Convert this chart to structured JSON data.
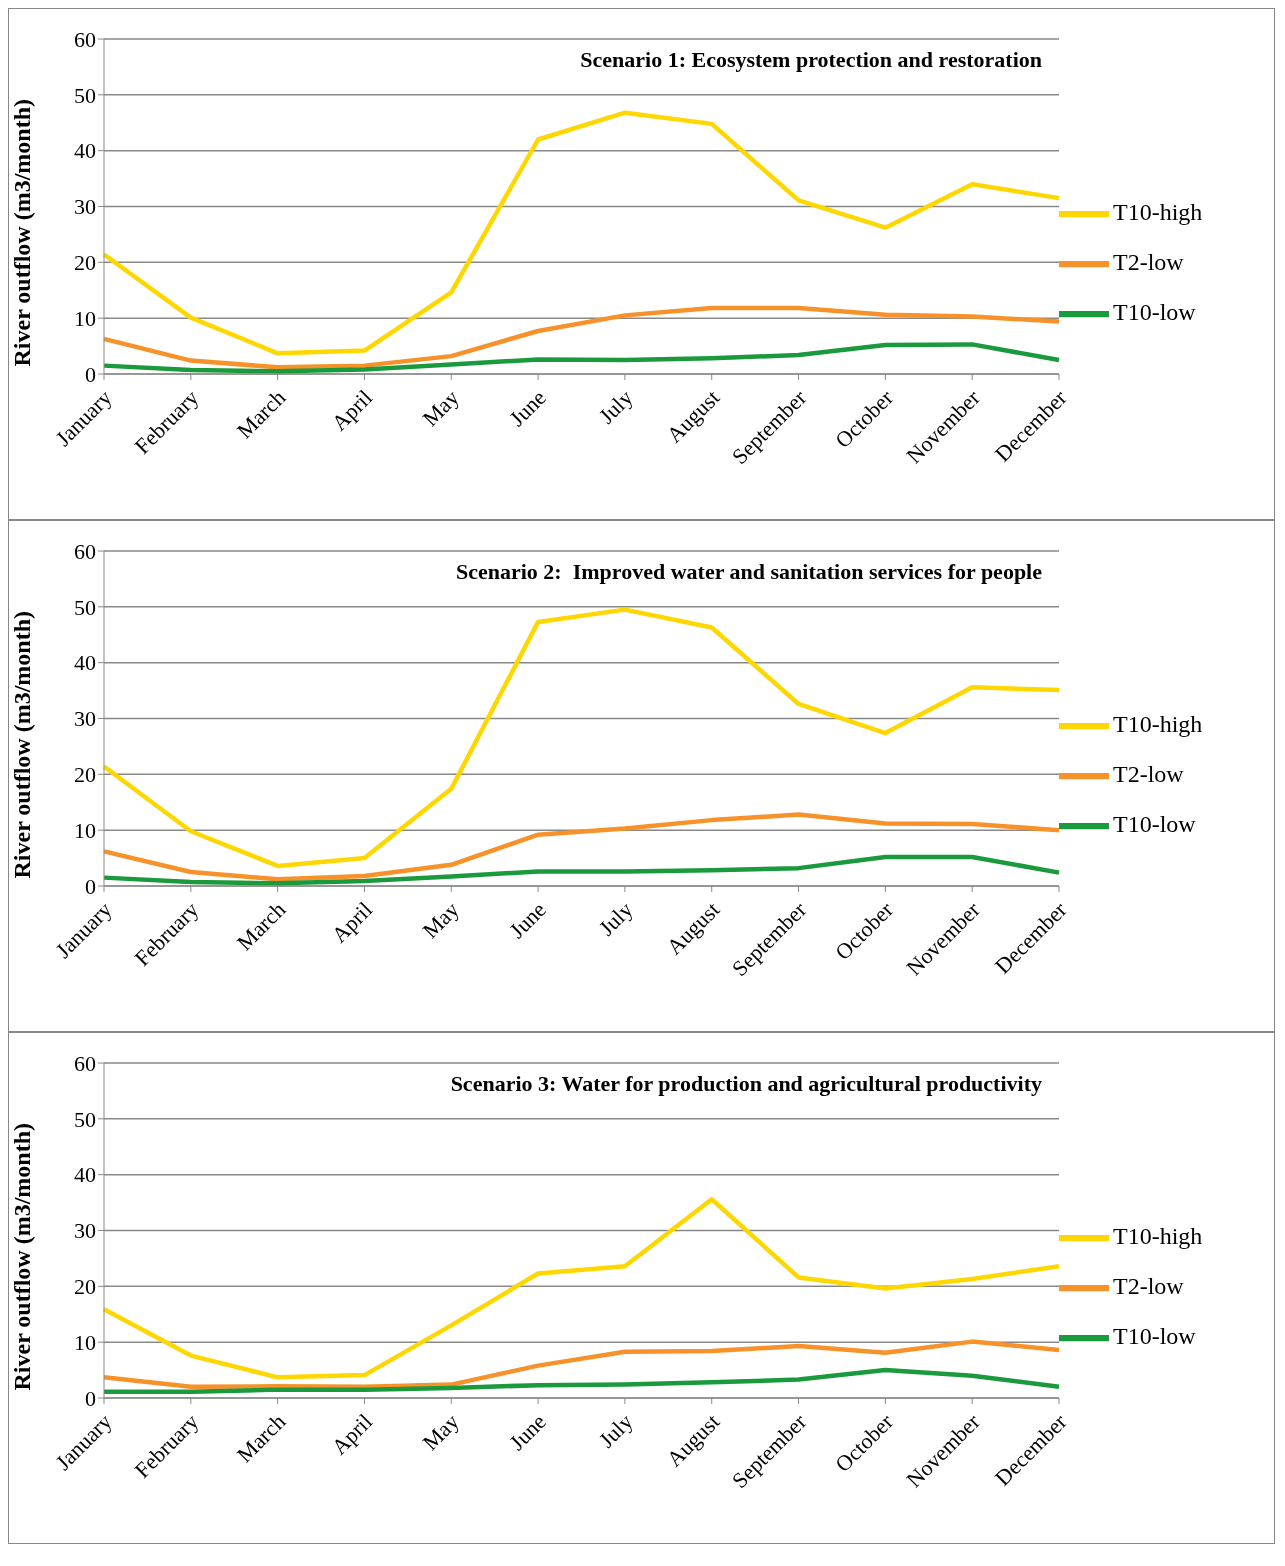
{
  "chart_data": [
    {
      "type": "line",
      "title": "Scenario 1: Ecosystem protection and restoration",
      "ylabel": "River outflow (m3/month)",
      "categories": [
        "January",
        "February",
        "March",
        "April",
        "May",
        "June",
        "July",
        "August",
        "September",
        "October",
        "November",
        "December"
      ],
      "ylim": [
        0,
        60
      ],
      "yticks": [
        0,
        10,
        20,
        30,
        40,
        50,
        60
      ],
      "grid": "y",
      "legend": "right",
      "series": [
        {
          "name": "T10-high",
          "color": "#ffd700",
          "values": [
            21.4,
            10.1,
            3.7,
            4.2,
            14.6,
            42,
            46.8,
            44.8,
            31.1,
            26.2,
            34,
            31.5
          ]
        },
        {
          "name": "T2-low",
          "color": "#f7922a",
          "values": [
            6.3,
            2.4,
            1.2,
            1.5,
            3.2,
            7.7,
            10.5,
            11.8,
            11.8,
            10.6,
            10.3,
            9.4
          ]
        },
        {
          "name": "T10-low",
          "color": "#1a9a3c",
          "values": [
            1.5,
            0.7,
            0.5,
            0.8,
            1.7,
            2.6,
            2.5,
            2.8,
            3.4,
            5.2,
            5.3,
            2.5
          ]
        }
      ]
    },
    {
      "type": "line",
      "title": "Scenario 2:  Improved water and sanitation services for people",
      "ylabel": "River outflow (m3/month)",
      "categories": [
        "January",
        "February",
        "March",
        "April",
        "May",
        "June",
        "July",
        "August",
        "September",
        "October",
        "November",
        "December"
      ],
      "ylim": [
        0,
        60
      ],
      "yticks": [
        0,
        10,
        20,
        30,
        40,
        50,
        60
      ],
      "grid": "y",
      "legend": "right",
      "series": [
        {
          "name": "T10-high",
          "color": "#ffd700",
          "values": [
            21.4,
            9.8,
            3.6,
            5.0,
            17.4,
            47.3,
            49.5,
            46.3,
            32.6,
            27.4,
            35.6,
            35.1
          ]
        },
        {
          "name": "T2-low",
          "color": "#f7922a",
          "values": [
            6.2,
            2.5,
            1.2,
            1.8,
            3.8,
            9.2,
            10.3,
            11.8,
            12.8,
            11.2,
            11.1,
            10.0
          ]
        },
        {
          "name": "T10-low",
          "color": "#1a9a3c",
          "values": [
            1.5,
            0.7,
            0.5,
            0.9,
            1.7,
            2.6,
            2.6,
            2.8,
            3.2,
            5.2,
            5.2,
            2.4
          ]
        }
      ]
    },
    {
      "type": "line",
      "title": "Scenario 3: Water for production and agricultural productivity",
      "ylabel": "River outflow (m3/month)",
      "categories": [
        "January",
        "February",
        "March",
        "April",
        "May",
        "June",
        "July",
        "August",
        "September",
        "October",
        "November",
        "December"
      ],
      "ylim": [
        0,
        60
      ],
      "yticks": [
        0,
        10,
        20,
        30,
        40,
        50,
        60
      ],
      "grid": "y",
      "legend": "right",
      "series": [
        {
          "name": "T10-high",
          "color": "#ffd700",
          "values": [
            15.9,
            7.6,
            3.7,
            4.1,
            13,
            22.3,
            23.6,
            35.6,
            21.6,
            19.6,
            21.3,
            23.6
          ]
        },
        {
          "name": "T2-low",
          "color": "#f7922a",
          "values": [
            3.7,
            2.0,
            2.1,
            2.0,
            2.4,
            5.8,
            8.3,
            8.4,
            9.3,
            8.1,
            10.1,
            8.6
          ]
        },
        {
          "name": "T10-low",
          "color": "#1a9a3c",
          "values": [
            1.1,
            1.1,
            1.5,
            1.5,
            1.8,
            2.3,
            2.4,
            2.8,
            3.3,
            5.0,
            4.0,
            2.0
          ]
        }
      ]
    }
  ]
}
